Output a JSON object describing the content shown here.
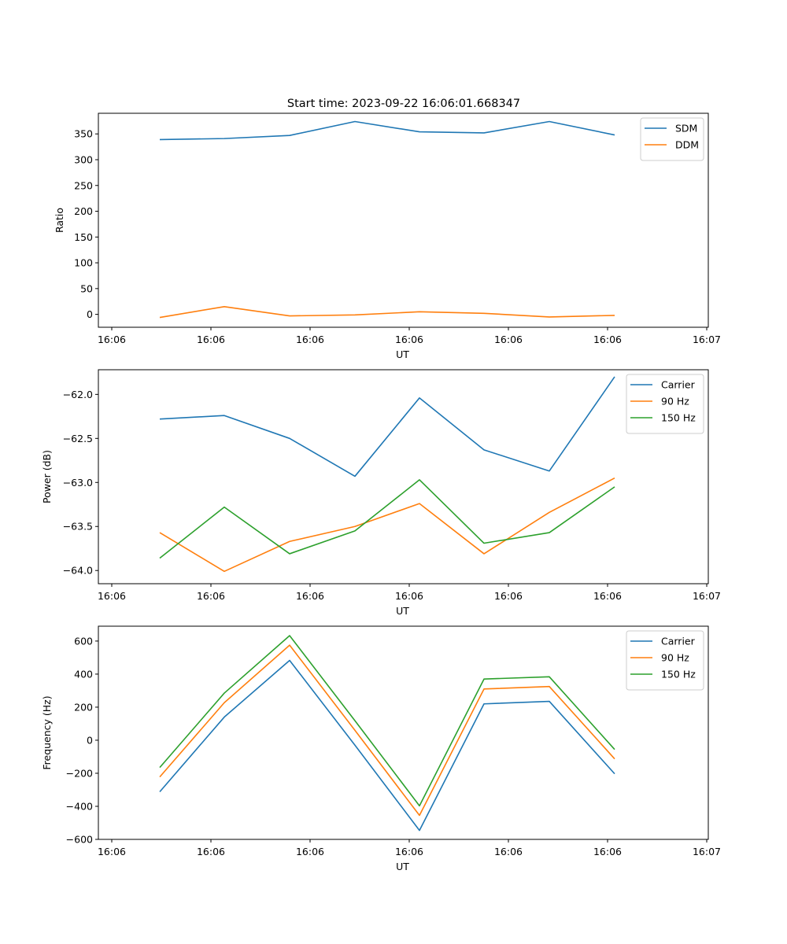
{
  "figure_title": "Start time: 2023-09-22 16:06:01.668347",
  "colors": {
    "blue": "#1f77b4",
    "orange": "#ff7f0e",
    "green": "#2ca02c"
  },
  "chart_data": [
    {
      "type": "line",
      "xlabel": "UT",
      "ylabel": "Ratio",
      "x_tick_labels": [
        "16:06",
        "16:06",
        "16:06",
        "16:06",
        "16:06",
        "16:06",
        "16:07"
      ],
      "ylim": [
        -25,
        390
      ],
      "y_ticks": [
        0,
        50,
        100,
        150,
        200,
        250,
        300,
        350
      ],
      "legend_position": "top-right",
      "series": [
        {
          "name": "SDM",
          "color": "#1f77b4",
          "values": [
            339,
            341,
            347,
            374,
            354,
            352,
            374,
            348
          ]
        },
        {
          "name": "DDM",
          "color": "#ff7f0e",
          "values": [
            -6,
            15,
            -3,
            -1,
            5,
            2,
            -5,
            -2
          ]
        }
      ]
    },
    {
      "type": "line",
      "xlabel": "UT",
      "ylabel": "Power (dB)",
      "x_tick_labels": [
        "16:06",
        "16:06",
        "16:06",
        "16:06",
        "16:06",
        "16:06",
        "16:07"
      ],
      "ylim": [
        -64.15,
        -61.72
      ],
      "y_ticks": [
        -64.0,
        -63.5,
        -63.0,
        -62.5,
        -62.0
      ],
      "y_tick_labels": [
        "−64.0",
        "−63.5",
        "−63.0",
        "−62.5",
        "−62.0"
      ],
      "legend_position": "top-right",
      "series": [
        {
          "name": "Carrier",
          "color": "#1f77b4",
          "values": [
            -62.28,
            -62.24,
            -62.5,
            -62.93,
            -62.04,
            -62.63,
            -62.87,
            -61.8
          ]
        },
        {
          "name": "90 Hz",
          "color": "#ff7f0e",
          "values": [
            -63.57,
            -64.01,
            -63.67,
            -63.5,
            -63.24,
            -63.81,
            -63.34,
            -62.95
          ]
        },
        {
          "name": "150 Hz",
          "color": "#2ca02c",
          "values": [
            -63.86,
            -63.28,
            -63.81,
            -63.55,
            -62.97,
            -63.69,
            -63.57,
            -63.05
          ]
        }
      ]
    },
    {
      "type": "line",
      "xlabel": "UT",
      "ylabel": "Frequency (Hz)",
      "x_tick_labels": [
        "16:06",
        "16:06",
        "16:06",
        "16:06",
        "16:06",
        "16:06",
        "16:07"
      ],
      "ylim": [
        -600,
        690
      ],
      "y_ticks": [
        -600,
        -400,
        -200,
        0,
        200,
        400,
        600
      ],
      "y_tick_labels": [
        "−600",
        "−400",
        "−200",
        "0",
        "200",
        "400",
        "600"
      ],
      "legend_position": "top-right",
      "series": [
        {
          "name": "Carrier",
          "color": "#1f77b4",
          "values": [
            -312,
            140,
            483,
            -30,
            -546,
            220,
            235,
            -203
          ]
        },
        {
          "name": "90 Hz",
          "color": "#ff7f0e",
          "values": [
            -222,
            227,
            575,
            60,
            -455,
            310,
            325,
            -113
          ]
        },
        {
          "name": "150 Hz",
          "color": "#2ca02c",
          "values": [
            -165,
            285,
            633,
            118,
            -397,
            370,
            384,
            -56
          ]
        }
      ]
    }
  ]
}
